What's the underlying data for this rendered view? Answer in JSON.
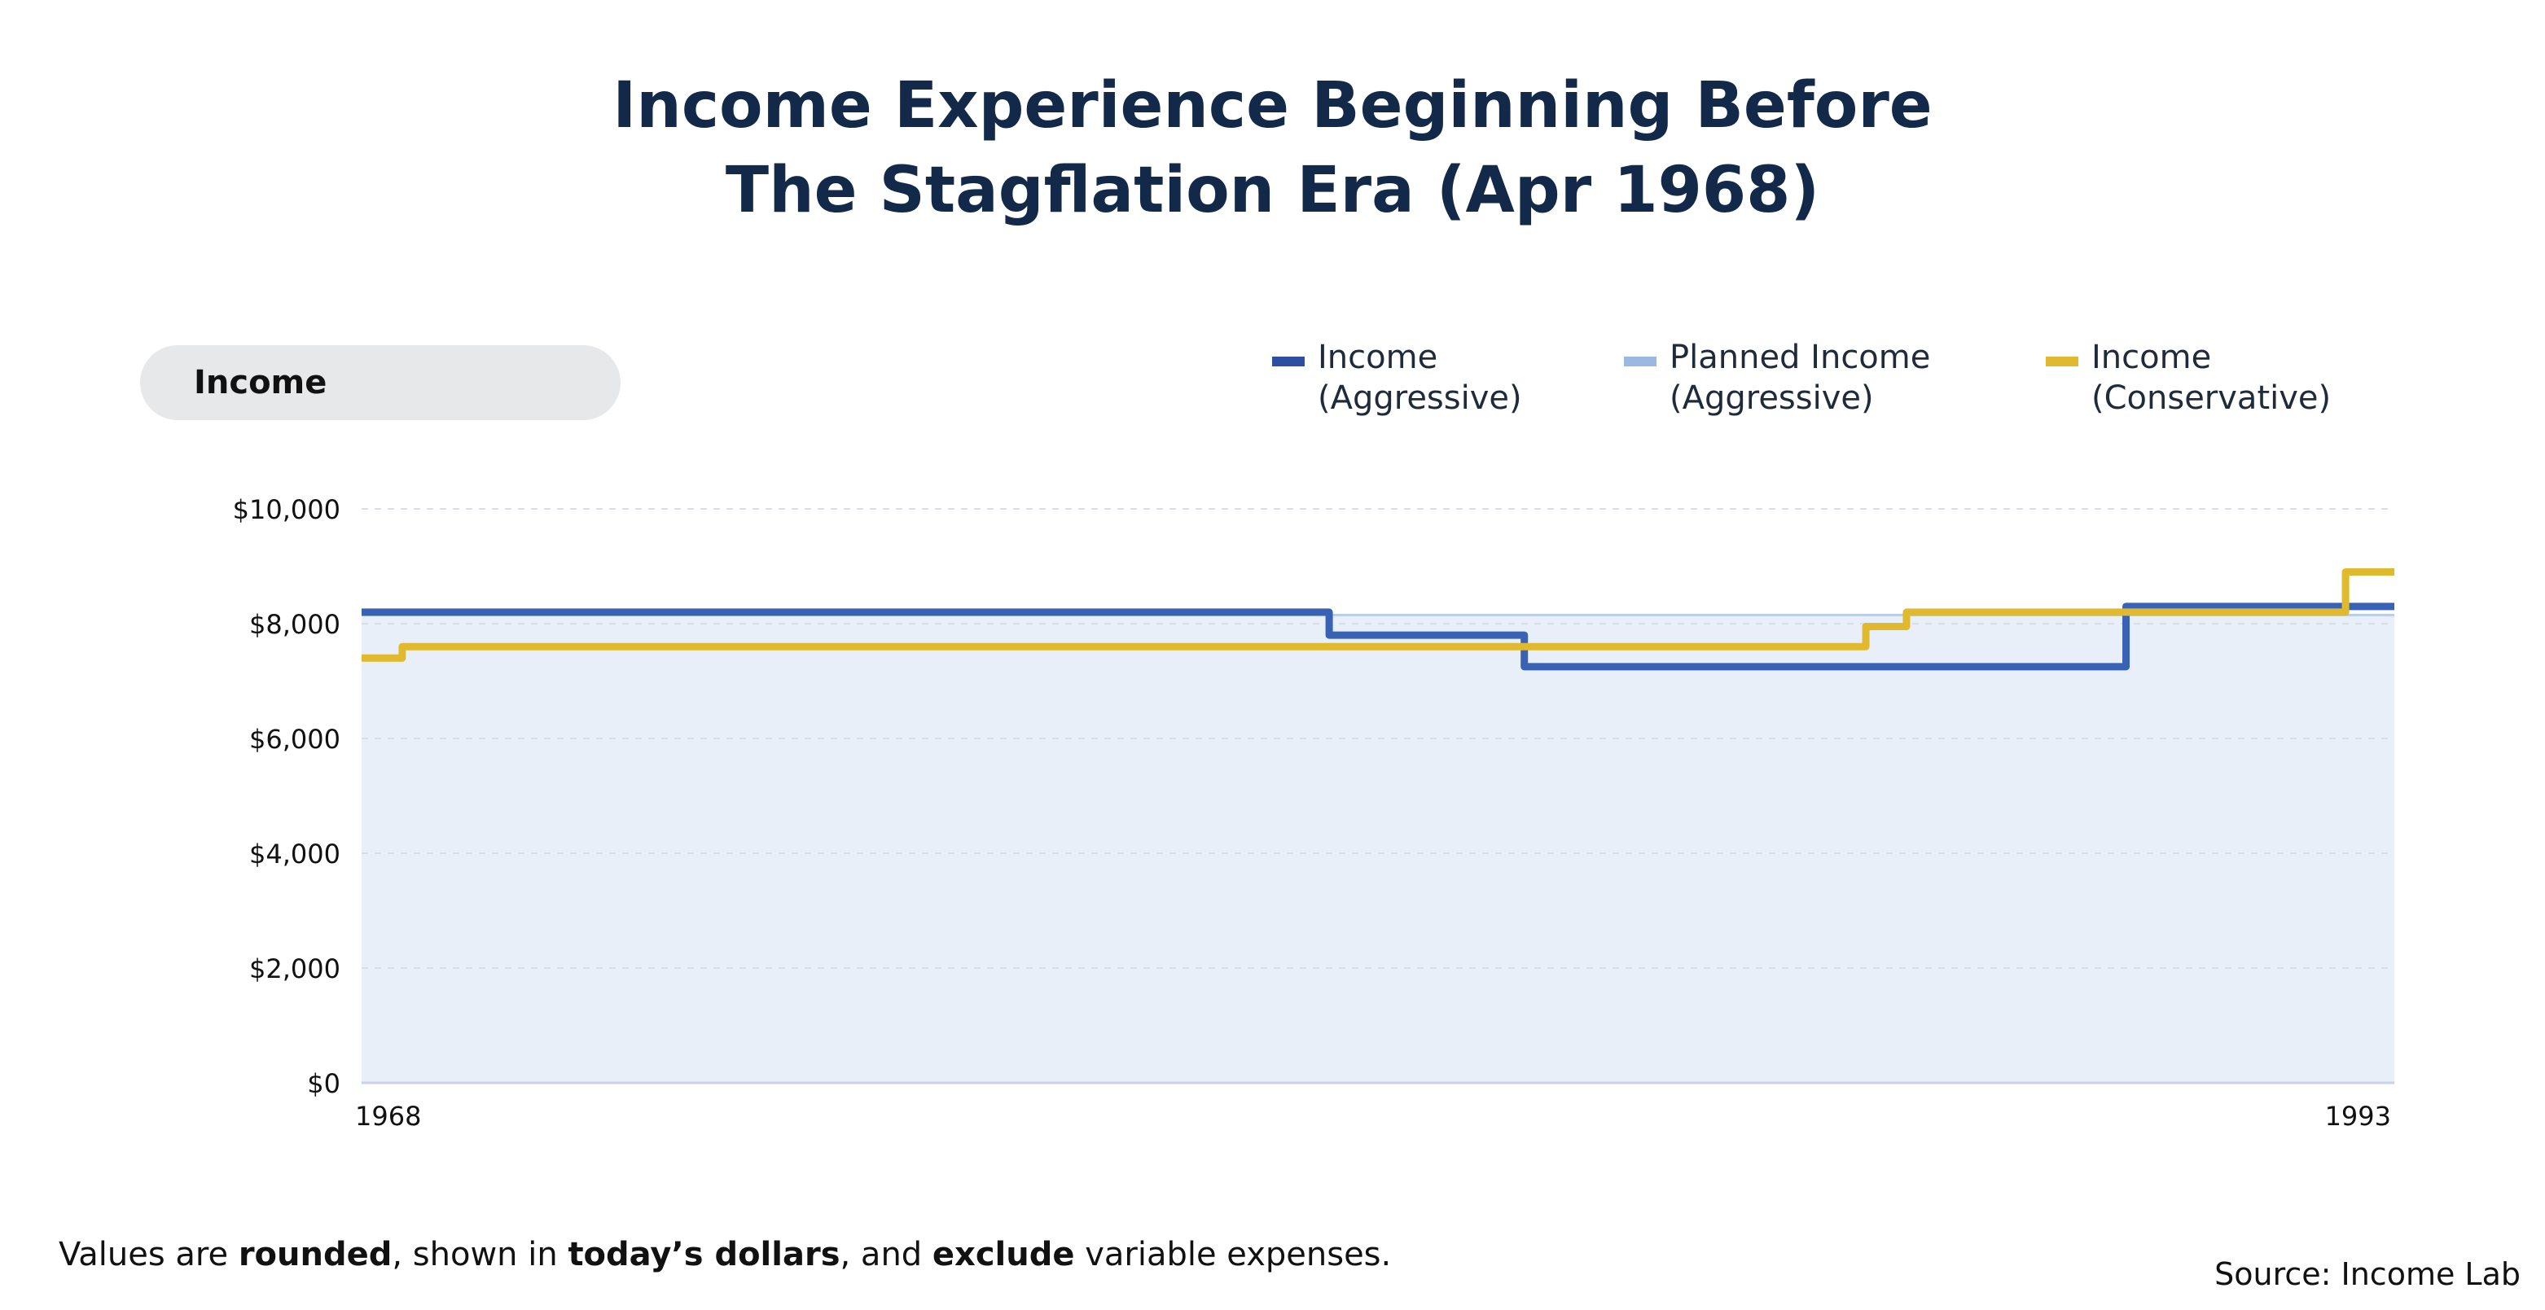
{
  "title": {
    "line1": "Income Experience Beginning Before",
    "line2": "The Stagflation Era (Apr 1968)"
  },
  "selector": {
    "label": "Income"
  },
  "legend": [
    {
      "line1": "Income",
      "line2": "(Aggressive)",
      "color": "#2d4fa0"
    },
    {
      "line1": "Planned Income",
      "line2": "(Aggressive)",
      "color": "#9ab8e0"
    },
    {
      "line1": "Income",
      "line2": "(Conservative)",
      "color": "#e0b92e"
    }
  ],
  "footnote": {
    "p1": "Values are ",
    "b1": "rounded",
    "p2": ", shown in ",
    "b2": "today’s dollars",
    "p3": ", and ",
    "b3": "exclude",
    "p4": " variable expenses."
  },
  "source": "Source: Income Lab",
  "chart_data": {
    "type": "line",
    "xlim": [
      1968.0,
      1993.0
    ],
    "ylim": [
      0,
      10000
    ],
    "y_ticks": [
      0,
      2000,
      4000,
      6000,
      8000,
      10000
    ],
    "y_tick_labels": [
      "$0",
      "$2,000",
      "$4,000",
      "$6,000",
      "$8,000",
      "$10,000"
    ],
    "x_tick_labels": [
      "1968",
      "1993"
    ],
    "grid": true,
    "legend_position": "top-right",
    "colors": {
      "aggressive": "#3a62b4",
      "planned_line": "#b9cee8",
      "planned_fill": "#e9eff9",
      "conservative": "#e0b92e",
      "grid": "#d8dde6",
      "axis": "#c6d3e8"
    },
    "series": [
      {
        "name": "Income (Aggressive)",
        "step": true,
        "points": [
          [
            1968.0,
            8200
          ],
          [
            1979.9,
            8200
          ],
          [
            1979.9,
            7800
          ],
          [
            1982.3,
            7800
          ],
          [
            1982.3,
            7250
          ],
          [
            1989.7,
            7250
          ],
          [
            1989.7,
            8300
          ],
          [
            1993.0,
            8300
          ]
        ]
      },
      {
        "name": "Planned Income (Aggressive)",
        "step": true,
        "points": [
          [
            1968.0,
            8150
          ],
          [
            1993.0,
            8150
          ]
        ]
      },
      {
        "name": "Income (Conservative)",
        "step": true,
        "points": [
          [
            1968.0,
            7400
          ],
          [
            1968.5,
            7400
          ],
          [
            1968.5,
            7600
          ],
          [
            1986.5,
            7600
          ],
          [
            1986.5,
            7950
          ],
          [
            1987.0,
            7950
          ],
          [
            1987.0,
            8200
          ],
          [
            1992.4,
            8200
          ],
          [
            1992.4,
            8900
          ],
          [
            1993.0,
            8900
          ]
        ]
      }
    ]
  }
}
